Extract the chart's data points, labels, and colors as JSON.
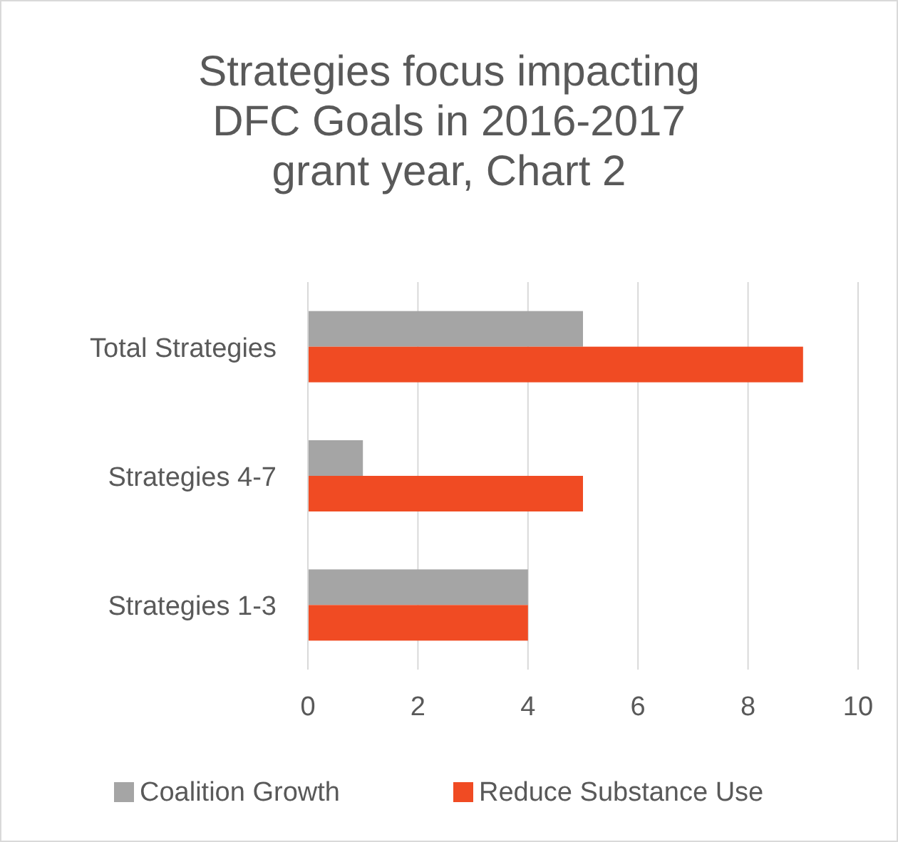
{
  "chart_data": {
    "type": "bar",
    "orientation": "horizontal",
    "title": "Strategies focus impacting DFC Goals in 2016-2017 grant year, Chart 2",
    "categories": [
      "Total Strategies",
      "Strategies 4-7",
      "Strategies 1-3"
    ],
    "series": [
      {
        "name": "Coalition Growth",
        "color": "#a5a5a5",
        "values": [
          5,
          1,
          4
        ]
      },
      {
        "name": "Reduce Substance Use",
        "color": "#f04b23",
        "values": [
          9,
          5,
          4
        ]
      }
    ],
    "xlim": [
      0,
      10
    ],
    "xticks": [
      0,
      2,
      4,
      6,
      8,
      10
    ],
    "grid": "x",
    "legend": "bottom"
  }
}
